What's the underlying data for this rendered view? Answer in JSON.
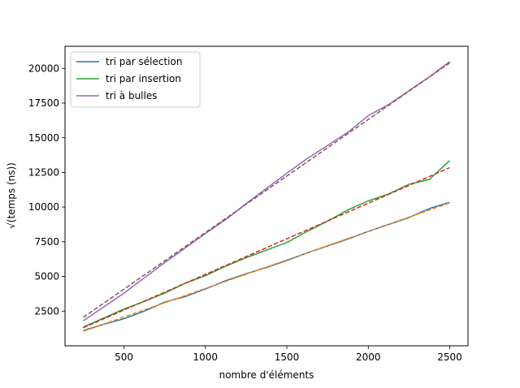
{
  "chart_data": {
    "type": "line",
    "xlabel": "nombre d'éléments",
    "ylabel": "√(temps (ns))",
    "xlim": [
      138,
      2612
    ],
    "ylim": [
      0,
      21600
    ],
    "xticks": [
      500,
      1000,
      1500,
      2000,
      2500
    ],
    "yticks": [
      2500,
      5000,
      7500,
      10000,
      12500,
      15000,
      17500,
      20000
    ],
    "xtick_labels": [
      "500",
      "1000",
      "1500",
      "2000",
      "2500"
    ],
    "ytick_labels": [
      "2500",
      "5000",
      "7500",
      "10000",
      "12500",
      "15000",
      "17500",
      "20000"
    ],
    "grid": false,
    "legend_position": "top-left",
    "series": [
      {
        "name": "tri par sélection",
        "color": "#1f77b4",
        "style": "solid",
        "x": [
          250,
          375,
          500,
          625,
          750,
          875,
          1000,
          1125,
          1250,
          1375,
          1500,
          1625,
          1750,
          1875,
          2000,
          2125,
          2250,
          2375,
          2500
        ],
        "y": [
          1100,
          1550,
          1950,
          2500,
          3150,
          3550,
          4100,
          4700,
          5200,
          5650,
          6150,
          6700,
          7200,
          7700,
          8250,
          8750,
          9250,
          9900,
          10350
        ]
      },
      {
        "name": "tri par insertion",
        "color": "#2ca02c",
        "style": "solid",
        "x": [
          250,
          375,
          500,
          625,
          750,
          875,
          1000,
          1125,
          1250,
          1375,
          1500,
          1625,
          1750,
          1875,
          2000,
          2125,
          2250,
          2375,
          2500
        ],
        "y": [
          1350,
          2000,
          2650,
          3200,
          3800,
          4500,
          5050,
          5750,
          6350,
          6900,
          7450,
          8250,
          9000,
          9800,
          10450,
          10950,
          11650,
          12000,
          13350
        ]
      },
      {
        "name": "tri à bulles",
        "color": "#9467bd",
        "style": "solid",
        "x": [
          250,
          375,
          500,
          625,
          750,
          875,
          1000,
          1125,
          1250,
          1375,
          1500,
          1625,
          1750,
          1875,
          2000,
          2125,
          2250,
          2375,
          2500
        ],
        "y": [
          1800,
          2800,
          3800,
          4900,
          6000,
          7050,
          8100,
          9100,
          10250,
          11350,
          12450,
          13500,
          14450,
          15400,
          16600,
          17400,
          18400,
          19400,
          20500
        ]
      },
      {
        "color": "#ff7f0e",
        "style": "dashed",
        "x": [
          250,
          2500
        ],
        "y": [
          1050,
          10300
        ]
      },
      {
        "color": "#d62728",
        "style": "dashed",
        "x": [
          250,
          2500
        ],
        "y": [
          1300,
          12850
        ]
      },
      {
        "color": "#8c564b",
        "style": "dashed",
        "x": [
          250,
          2500
        ],
        "y": [
          2050,
          20400
        ]
      }
    ]
  }
}
